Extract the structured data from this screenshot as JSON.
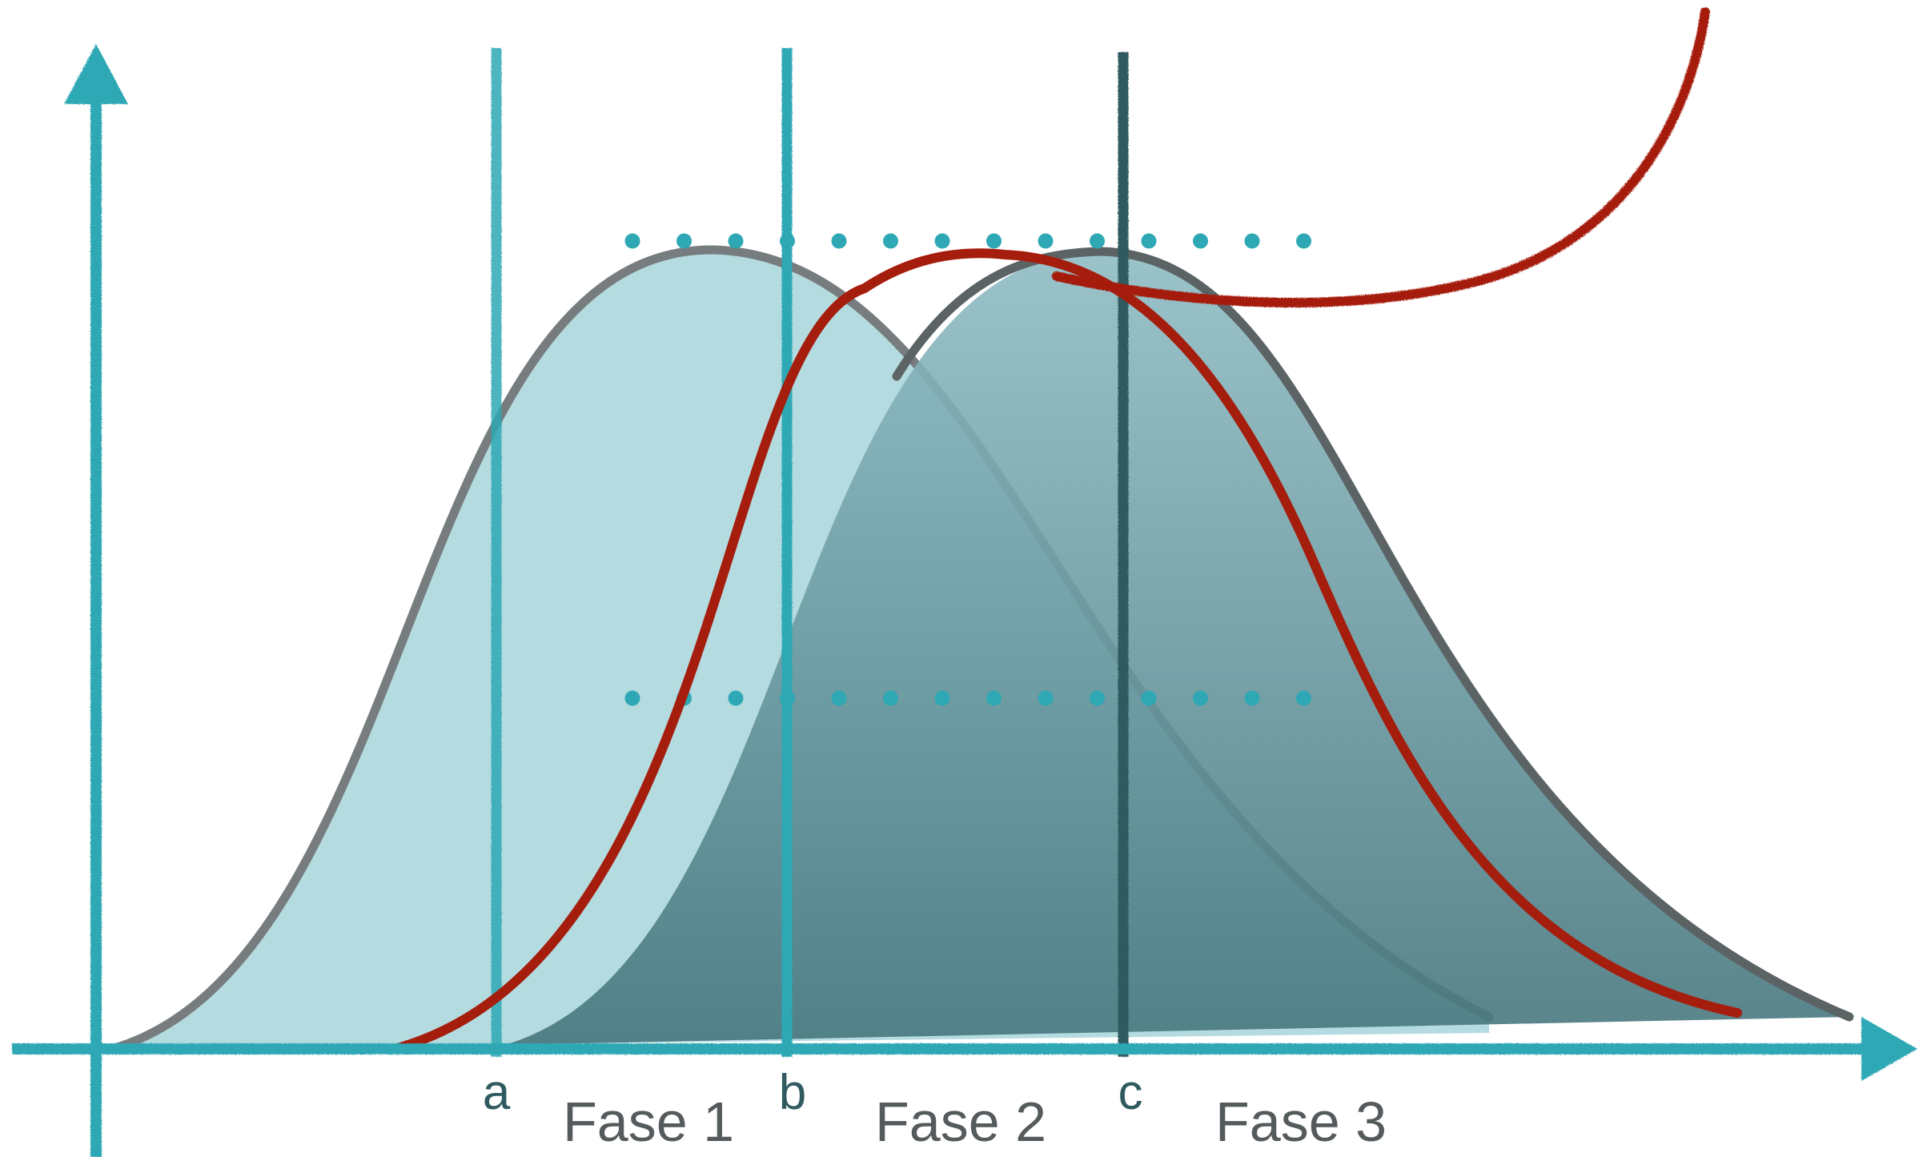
{
  "colors": {
    "axis": "#2ea8b4",
    "marker_light": "#2ea8b4",
    "marker_dark": "#2f5a60",
    "red_curve": "#a51d0c",
    "bell_outline": "#666b6d",
    "bell_light_fill": "#b3dadf",
    "bell_dark_fill_top": "#7fb1ba",
    "bell_dark_fill_bottom": "#47787f",
    "dots": "#2ea8b4",
    "label_marker": "#2f5a60",
    "label_phase": "#555a5c"
  },
  "markers": [
    {
      "label": "a"
    },
    {
      "label": "b"
    },
    {
      "label": "c"
    }
  ],
  "phases": [
    {
      "label": "Fase 1"
    },
    {
      "label": "Fase 2"
    },
    {
      "label": "Fase 3"
    }
  ]
}
